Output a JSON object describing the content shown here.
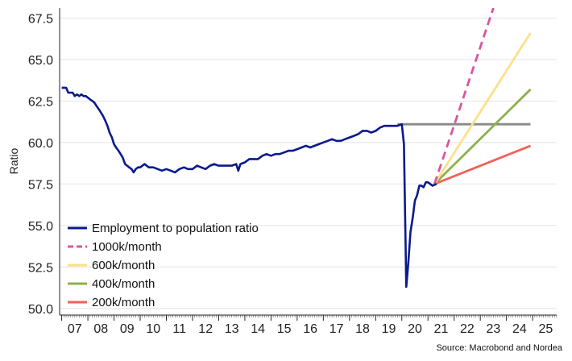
{
  "chart_data": {
    "type": "line",
    "ylabel": "Ratio",
    "xlabel": "",
    "source": "Source: Macrobond and Nordea",
    "ylim": [
      49.6,
      68.1
    ],
    "xlim": [
      2006.92,
      2025.92
    ],
    "y_ticks": [
      "50.0",
      "52.5",
      "55.0",
      "57.5",
      "60.0",
      "62.5",
      "65.0",
      "67.5"
    ],
    "y_tick_values": [
      50.0,
      52.5,
      55.0,
      57.5,
      60.0,
      62.5,
      65.0,
      67.5
    ],
    "x_ticks": [
      "07",
      "08",
      "09",
      "10",
      "11",
      "12",
      "13",
      "14",
      "15",
      "16",
      "17",
      "18",
      "19",
      "20",
      "21",
      "22",
      "23",
      "24",
      "25"
    ],
    "x_tick_values": [
      2007.5,
      2008.5,
      2009.5,
      2010.5,
      2011.5,
      2012.5,
      2013.5,
      2014.5,
      2015.5,
      2016.5,
      2017.5,
      2018.5,
      2019.5,
      2020.5,
      2021.5,
      2022.5,
      2023.5,
      2024.5,
      2025.5
    ],
    "grid": "horizontal",
    "legend_position": "bottom-left",
    "series": [
      {
        "name": "Employment to population ratio",
        "color": "#0a1a8c",
        "style": "solid",
        "x": [
          2007.0,
          2007.08,
          2007.17,
          2007.25,
          2007.33,
          2007.42,
          2007.5,
          2007.58,
          2007.67,
          2007.75,
          2007.83,
          2007.92,
          2008.0,
          2008.08,
          2008.17,
          2008.25,
          2008.33,
          2008.42,
          2008.5,
          2008.58,
          2008.67,
          2008.75,
          2008.83,
          2008.92,
          2009.0,
          2009.08,
          2009.17,
          2009.25,
          2009.33,
          2009.42,
          2009.5,
          2009.58,
          2009.67,
          2009.75,
          2009.83,
          2009.92,
          2010.0,
          2010.17,
          2010.33,
          2010.5,
          2010.67,
          2010.83,
          2011.0,
          2011.17,
          2011.33,
          2011.5,
          2011.67,
          2011.83,
          2012.0,
          2012.17,
          2012.33,
          2012.5,
          2012.67,
          2012.83,
          2013.0,
          2013.17,
          2013.33,
          2013.5,
          2013.67,
          2013.75,
          2013.83,
          2014.0,
          2014.17,
          2014.33,
          2014.5,
          2014.67,
          2014.83,
          2015.0,
          2015.17,
          2015.33,
          2015.5,
          2015.67,
          2015.83,
          2016.0,
          2016.17,
          2016.33,
          2016.5,
          2016.67,
          2016.83,
          2017.0,
          2017.17,
          2017.33,
          2017.5,
          2017.67,
          2017.83,
          2018.0,
          2018.17,
          2018.33,
          2018.5,
          2018.67,
          2018.83,
          2019.0,
          2019.17,
          2019.33,
          2019.5,
          2019.67,
          2019.83,
          2020.0,
          2020.08,
          2020.17,
          2020.25,
          2020.33,
          2020.42,
          2020.5,
          2020.58,
          2020.67,
          2020.75,
          2020.83,
          2020.92,
          2021.0,
          2021.17,
          2021.33
        ],
        "values": [
          63.3,
          63.3,
          63.3,
          63.0,
          63.0,
          63.0,
          62.8,
          62.9,
          62.8,
          62.9,
          62.8,
          62.8,
          62.7,
          62.6,
          62.5,
          62.4,
          62.2,
          62.0,
          61.8,
          61.6,
          61.3,
          61.0,
          60.6,
          60.3,
          59.9,
          59.7,
          59.5,
          59.3,
          59.1,
          58.7,
          58.6,
          58.5,
          58.4,
          58.2,
          58.4,
          58.5,
          58.5,
          58.7,
          58.5,
          58.5,
          58.4,
          58.3,
          58.4,
          58.3,
          58.2,
          58.4,
          58.5,
          58.4,
          58.4,
          58.6,
          58.5,
          58.4,
          58.6,
          58.7,
          58.6,
          58.6,
          58.6,
          58.6,
          58.7,
          58.3,
          58.7,
          58.8,
          59.0,
          59.0,
          59.0,
          59.2,
          59.3,
          59.2,
          59.3,
          59.3,
          59.4,
          59.5,
          59.5,
          59.6,
          59.7,
          59.8,
          59.7,
          59.8,
          59.9,
          60.0,
          60.1,
          60.2,
          60.1,
          60.1,
          60.2,
          60.3,
          60.4,
          60.5,
          60.7,
          60.7,
          60.6,
          60.7,
          60.9,
          61.0,
          61.0,
          61.0,
          61.0,
          61.1,
          59.9,
          51.3,
          52.8,
          54.6,
          55.5,
          56.5,
          56.8,
          57.4,
          57.4,
          57.3,
          57.6,
          57.6,
          57.4,
          57.5
        ]
      },
      {
        "name": "",
        "color": "#8a8a8a",
        "style": "solid",
        "x": [
          2019.83,
          2024.92
        ],
        "values": [
          61.1,
          61.1
        ]
      },
      {
        "name": "1000k/month",
        "color": "#d9559f",
        "style": "dashed",
        "x": [
          2021.25,
          2023.5
        ],
        "values": [
          57.5,
          68.1
        ]
      },
      {
        "name": "600k/month",
        "color": "#fde08a",
        "style": "solid",
        "x": [
          2021.25,
          2024.92
        ],
        "values": [
          57.5,
          66.6
        ]
      },
      {
        "name": "400k/month",
        "color": "#8db04a",
        "style": "solid",
        "x": [
          2021.25,
          2024.92
        ],
        "values": [
          57.5,
          63.2
        ]
      },
      {
        "name": "200k/month",
        "color": "#f0625a",
        "style": "solid",
        "x": [
          2021.25,
          2024.92
        ],
        "values": [
          57.5,
          59.8
        ]
      }
    ],
    "legend": [
      {
        "label": "Employment to population ratio",
        "color": "#0a1a8c",
        "style": "solid"
      },
      {
        "label": "1000k/month",
        "color": "#d9559f",
        "style": "dashed"
      },
      {
        "label": "600k/month",
        "color": "#fde08a",
        "style": "solid"
      },
      {
        "label": "400k/month",
        "color": "#8db04a",
        "style": "solid"
      },
      {
        "label": "200k/month",
        "color": "#f0625a",
        "style": "solid"
      }
    ]
  }
}
